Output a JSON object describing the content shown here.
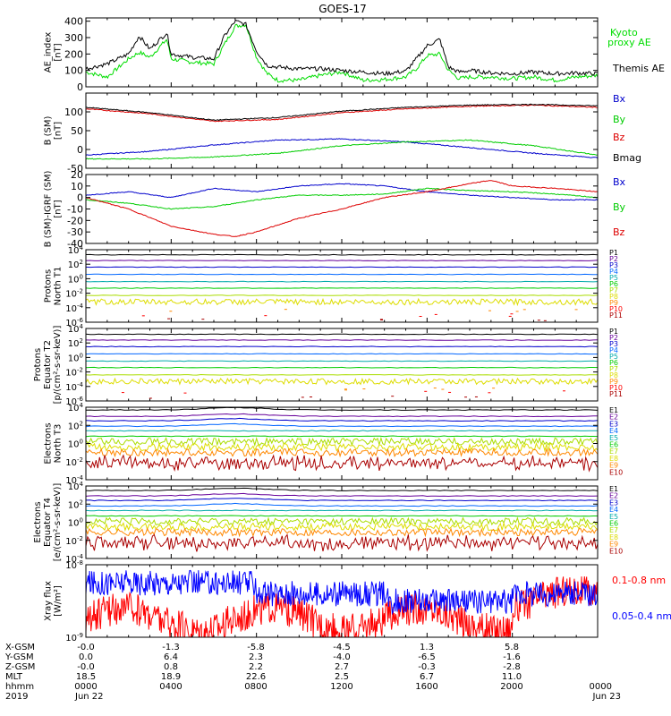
{
  "title": "GOES-17",
  "chart_data": [
    {
      "type": "line",
      "panel": "ae-index",
      "ylabel": [
        "AE_index",
        "[nT]"
      ],
      "ylim": [
        0,
        420
      ],
      "yticks": [
        0,
        100,
        200,
        300,
        400
      ],
      "xlim": [
        0,
        24
      ],
      "series": [
        {
          "name": "Kyoto proxy AE",
          "legend_lines": [
            "Kyoto",
            "proxy AE"
          ],
          "color": "#00dd00",
          "x": [
            0,
            1,
            2,
            2.5,
            3,
            3.8,
            4,
            5,
            6,
            6.5,
            7,
            7.5,
            8,
            8.5,
            9,
            10,
            11,
            12,
            13,
            14,
            15,
            15.5,
            16,
            16.6,
            17,
            17.5,
            18,
            19,
            20,
            21,
            22,
            23,
            24
          ],
          "values": [
            90,
            60,
            170,
            210,
            180,
            290,
            170,
            150,
            140,
            260,
            370,
            380,
            180,
            80,
            40,
            40,
            70,
            90,
            40,
            45,
            60,
            110,
            190,
            200,
            100,
            50,
            60,
            60,
            50,
            60,
            40,
            60,
            70
          ]
        },
        {
          "name": "Themis AE",
          "legend_lines": [
            "Themis AE"
          ],
          "color": "#000000",
          "x": [
            0,
            1,
            2,
            2.5,
            3,
            3.8,
            4,
            5,
            6,
            6.5,
            7,
            7.5,
            8,
            8.5,
            9,
            10,
            11,
            12,
            13,
            14,
            15,
            15.5,
            16,
            16.6,
            17,
            17.5,
            18,
            19,
            20,
            21,
            22,
            23,
            24
          ],
          "values": [
            110,
            140,
            200,
            310,
            230,
            330,
            200,
            180,
            170,
            310,
            400,
            380,
            220,
            130,
            120,
            110,
            110,
            100,
            90,
            80,
            95,
            170,
            250,
            290,
            120,
            90,
            100,
            85,
            80,
            90,
            80,
            85,
            80
          ]
        }
      ]
    },
    {
      "type": "line",
      "panel": "b-sm",
      "ylabel": [
        "B (SM)",
        "[nT]"
      ],
      "ylim": [
        -50,
        150
      ],
      "yticks": [
        -50,
        0,
        50,
        100
      ],
      "xlim": [
        0,
        24
      ],
      "series": [
        {
          "name": "Bx",
          "color": "#0000cc",
          "x": [
            0,
            3,
            6,
            9,
            12,
            15,
            18,
            21,
            24
          ],
          "values": [
            -15,
            -5,
            12,
            25,
            28,
            20,
            5,
            -10,
            -22
          ]
        },
        {
          "name": "By",
          "color": "#00cc00",
          "x": [
            0,
            3,
            6,
            9,
            12,
            15,
            18,
            21,
            24
          ],
          "values": [
            -25,
            -25,
            -20,
            -10,
            10,
            20,
            25,
            10,
            -15
          ]
        },
        {
          "name": "Bz",
          "color": "#dd0000",
          "x": [
            0,
            3,
            6,
            9,
            12,
            15,
            18,
            21,
            24
          ],
          "values": [
            108,
            95,
            75,
            80,
            98,
            108,
            115,
            118,
            112
          ]
        },
        {
          "name": "Bmag",
          "color": "#000000",
          "x": [
            0,
            3,
            6,
            9,
            12,
            15,
            18,
            21,
            24
          ],
          "values": [
            112,
            98,
            78,
            85,
            102,
            112,
            118,
            120,
            116
          ]
        }
      ]
    },
    {
      "type": "line",
      "panel": "b-igrf",
      "ylabel": [
        "B (SM)-IGRF (SM)",
        "[nT]"
      ],
      "ylim": [
        -40,
        20
      ],
      "yticks": [
        -40,
        -30,
        -20,
        -10,
        0,
        10,
        20
      ],
      "xlim": [
        0,
        24
      ],
      "series": [
        {
          "name": "Bx",
          "color": "#0000cc",
          "x": [
            0,
            2,
            4,
            6,
            8,
            10,
            12,
            14,
            16,
            18,
            20,
            22,
            24
          ],
          "values": [
            2,
            5,
            0,
            8,
            5,
            10,
            12,
            10,
            5,
            2,
            0,
            -2,
            -2
          ]
        },
        {
          "name": "By",
          "color": "#00cc00",
          "x": [
            0,
            2,
            4,
            6,
            8,
            10,
            12,
            14,
            16,
            18,
            20,
            22,
            24
          ],
          "values": [
            -2,
            -5,
            -10,
            -8,
            -2,
            2,
            2,
            3,
            8,
            6,
            5,
            3,
            0
          ]
        },
        {
          "name": "Bz",
          "color": "#dd0000",
          "x": [
            0,
            2,
            4,
            6,
            7,
            8,
            10,
            12,
            14,
            16,
            18,
            19,
            20,
            22,
            24
          ],
          "values": [
            0,
            -10,
            -25,
            -32,
            -34,
            -30,
            -18,
            -10,
            0,
            5,
            12,
            15,
            10,
            8,
            5
          ]
        }
      ]
    },
    {
      "type": "line",
      "panel": "protons-t1",
      "ylabel": [
        "Protons",
        "North T1"
      ],
      "log": true,
      "ylim_exp": [
        -6,
        4
      ],
      "ytick_exps": [
        -6,
        -4,
        -2,
        0,
        2,
        4
      ],
      "xlim": [
        0,
        24
      ],
      "series": [
        {
          "name": "P1",
          "color": "#000000",
          "level": 3.3
        },
        {
          "name": "P2",
          "color": "#660099",
          "level": 2.5
        },
        {
          "name": "P3",
          "color": "#0000cc",
          "level": 1.6
        },
        {
          "name": "P4",
          "color": "#0066ff",
          "level": 0.6
        },
        {
          "name": "P5",
          "color": "#00aaaa",
          "level": -0.4
        },
        {
          "name": "P6",
          "color": "#00cc00",
          "level": -1.3
        },
        {
          "name": "P7",
          "color": "#aadd00",
          "level": -2.3
        },
        {
          "name": "P8",
          "color": "#dddd00",
          "level": -3.2
        },
        {
          "name": "P9",
          "color": "#ff8800",
          "level": -4.4
        },
        {
          "name": "P10",
          "color": "#ff0000",
          "level": -5.0
        },
        {
          "name": "P11",
          "color": "#aa0000",
          "level": -5.6
        }
      ]
    },
    {
      "type": "line",
      "panel": "protons-t2",
      "ylabel": [
        "Protons",
        "Equator T2",
        "[p/(cm²-s-sr-keV)]"
      ],
      "log": true,
      "ylim_exp": [
        -6,
        4
      ],
      "ytick_exps": [
        -6,
        -4,
        -2,
        0,
        2,
        4
      ],
      "xlim": [
        0,
        24
      ],
      "series": [
        {
          "name": "P1",
          "color": "#000000",
          "level": 3.2
        },
        {
          "name": "P2",
          "color": "#660099",
          "level": 2.4
        },
        {
          "name": "P3",
          "color": "#0000cc",
          "level": 1.5
        },
        {
          "name": "P4",
          "color": "#0066ff",
          "level": 0.5
        },
        {
          "name": "P5",
          "color": "#00aaaa",
          "level": -0.5
        },
        {
          "name": "P6",
          "color": "#00cc00",
          "level": -1.4
        },
        {
          "name": "P7",
          "color": "#aadd00",
          "level": -2.4
        },
        {
          "name": "P8",
          "color": "#dddd00",
          "level": -3.3
        },
        {
          "name": "P9",
          "color": "#ff8800",
          "level": -4.3
        },
        {
          "name": "P10",
          "color": "#ff0000",
          "level": -4.8
        },
        {
          "name": "P11",
          "color": "#aa0000",
          "level": -5.5
        }
      ]
    },
    {
      "type": "line",
      "panel": "electrons-t3",
      "ylabel": [
        "Electrons",
        "North T3"
      ],
      "log": true,
      "ylim_exp": [
        -4,
        4
      ],
      "ytick_exps": [
        -4,
        -2,
        0,
        2,
        4
      ],
      "xlim": [
        0,
        24
      ],
      "series": [
        {
          "name": "E1",
          "color": "#000000",
          "level": 3.7
        },
        {
          "name": "E2",
          "color": "#660099",
          "level": 3.0
        },
        {
          "name": "E3",
          "color": "#0000cc",
          "level": 2.5
        },
        {
          "name": "E4",
          "color": "#0066ff",
          "level": 1.9
        },
        {
          "name": "E5",
          "color": "#00aaaa",
          "level": 1.4
        },
        {
          "name": "E6",
          "color": "#00cc00",
          "level": 0.8
        },
        {
          "name": "E7",
          "color": "#aadd00",
          "level": 0.2
        },
        {
          "name": "E8",
          "color": "#dddd00",
          "level": -0.4
        },
        {
          "name": "E9",
          "color": "#ff8800",
          "level": -1.0
        },
        {
          "name": "E10",
          "color": "#aa0000",
          "level": -2.2
        }
      ]
    },
    {
      "type": "line",
      "panel": "electrons-t4",
      "ylabel": [
        "Electrons",
        "Equator T4",
        "[e/(cm²-s-sr-keV)]"
      ],
      "log": true,
      "ylim_exp": [
        -4,
        4
      ],
      "ytick_exps": [
        -4,
        -2,
        0,
        2,
        4
      ],
      "xlim": [
        0,
        24
      ],
      "series": [
        {
          "name": "E1",
          "color": "#000000",
          "level": 3.5
        },
        {
          "name": "E2",
          "color": "#660099",
          "level": 2.9
        },
        {
          "name": "E3",
          "color": "#0000cc",
          "level": 2.4
        },
        {
          "name": "E4",
          "color": "#0066ff",
          "level": 1.8
        },
        {
          "name": "E5",
          "color": "#00aaaa",
          "level": 1.3
        },
        {
          "name": "E6",
          "color": "#00cc00",
          "level": 0.7
        },
        {
          "name": "E7",
          "color": "#aadd00",
          "level": 0.1
        },
        {
          "name": "E8",
          "color": "#dddd00",
          "level": -0.5
        },
        {
          "name": "E9",
          "color": "#ff8800",
          "level": -1.1
        },
        {
          "name": "E10",
          "color": "#aa0000",
          "level": -2.3
        }
      ]
    },
    {
      "type": "line",
      "panel": "xray-flux",
      "ylabel": [
        "Xray flux",
        "[W/m²]"
      ],
      "log": true,
      "ylim_exp": [
        -9,
        -8
      ],
      "ytick_exps": [
        -9,
        -8
      ],
      "xlim": [
        0,
        24
      ],
      "series": [
        {
          "name": "0.1-0.8 nm",
          "color": "#ff0000",
          "level": 0.2
        },
        {
          "name": "0.05-0.4 nm",
          "color": "#0000ff",
          "level": 0.7
        }
      ]
    }
  ],
  "orbit_table": {
    "row_labels": [
      "X-GSM",
      "Y-GSM",
      "Z-GSM",
      "MLT",
      "hhmm",
      "2019"
    ],
    "columns": [
      [
        "-0.0",
        "0.0",
        "-0.0",
        "18.5",
        "0000",
        "Jun 22"
      ],
      [
        "-1.3",
        "6.4",
        "0.8",
        "18.9",
        "0400",
        ""
      ],
      [
        "-5.8",
        "2.3",
        "2.2",
        "22.6",
        "0800",
        ""
      ],
      [
        "-4.5",
        "-4.0",
        "2.7",
        "2.5",
        "1200",
        ""
      ],
      [
        "1.3",
        "-6.5",
        "-0.3",
        "6.7",
        "1600",
        ""
      ],
      [
        "5.8",
        "-1.6",
        "-2.8",
        "11.0",
        "2000",
        ""
      ],
      [
        "",
        "",
        "",
        "",
        "0000",
        "Jun 23"
      ]
    ]
  }
}
